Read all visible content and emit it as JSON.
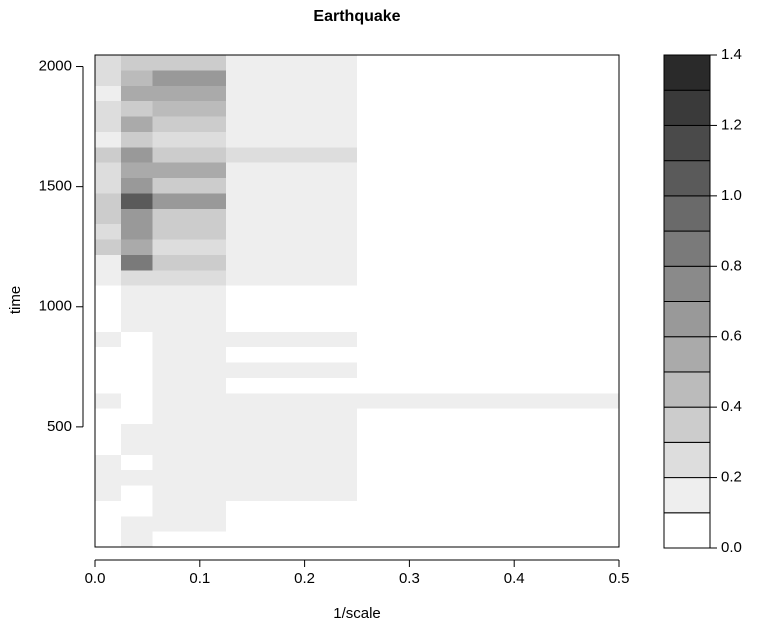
{
  "chart_data": {
    "type": "heatmap",
    "title": "Earthquake",
    "x_label": "1/scale",
    "y_label": "time",
    "xlim": [
      0,
      0.5
    ],
    "xticks": [
      {
        "value": 0,
        "label": "0.0"
      },
      0.1,
      0.2,
      0.3,
      0.4,
      0.5
    ],
    "ylim": [
      0,
      2048
    ],
    "yticks": [
      500,
      1000,
      1500,
      2000
    ],
    "x_edges": [
      0,
      0.025,
      0.055,
      0.125,
      0.25,
      0.5
    ],
    "y_edges": [
      0,
      64,
      128,
      192,
      256,
      320,
      384,
      448,
      512,
      576,
      640,
      704,
      768,
      832,
      896,
      960,
      1024,
      1088,
      1152,
      1216,
      1280,
      1344,
      1408,
      1472,
      1536,
      1600,
      1664,
      1728,
      1792,
      1856,
      1920,
      1984,
      2048
    ],
    "z": [
      [
        0,
        0.1,
        0,
        0,
        0
      ],
      [
        0,
        0.1,
        0.1,
        0,
        0
      ],
      [
        0.05,
        0.05,
        0.1,
        0.05,
        0
      ],
      [
        0.1,
        0.05,
        0.1,
        0.1,
        0.05
      ],
      [
        0.15,
        0.1,
        0.1,
        0.1,
        0.05
      ],
      [
        0.1,
        0.05,
        0.1,
        0.1,
        0
      ],
      [
        0.05,
        0.1,
        0.1,
        0.1,
        0
      ],
      [
        0.05,
        0.15,
        0.1,
        0.1,
        0
      ],
      [
        0.05,
        0.05,
        0.1,
        0.1,
        0.05
      ],
      [
        0.1,
        0.05,
        0.1,
        0.1,
        0.1
      ],
      [
        0.05,
        0.05,
        0.1,
        0.05,
        0
      ],
      [
        0,
        0.05,
        0.1,
        0.1,
        0
      ],
      [
        0.05,
        0.05,
        0.1,
        0.05,
        0
      ],
      [
        0.15,
        0.05,
        0.1,
        0.1,
        0.05
      ],
      [
        0.05,
        0.1,
        0.1,
        0.05,
        0
      ],
      [
        0,
        0.1,
        0.1,
        0.05,
        0
      ],
      [
        0.05,
        0.1,
        0.15,
        0.05,
        0
      ],
      [
        0.1,
        0.2,
        0.2,
        0.1,
        0
      ],
      [
        0.15,
        0.8,
        0.3,
        0.15,
        0.05
      ],
      [
        0.3,
        0.5,
        0.2,
        0.1,
        0
      ],
      [
        0.2,
        0.6,
        0.3,
        0.1,
        0
      ],
      [
        0.3,
        0.6,
        0.3,
        0.15,
        0
      ],
      [
        0.35,
        1.0,
        0.6,
        0.15,
        0
      ],
      [
        0.2,
        0.6,
        0.3,
        0.1,
        0
      ],
      [
        0.2,
        0.5,
        0.5,
        0.15,
        0
      ],
      [
        0.3,
        0.6,
        0.3,
        0.2,
        0.05
      ],
      [
        0.1,
        0.3,
        0.2,
        0.1,
        0
      ],
      [
        0.25,
        0.5,
        0.3,
        0.15,
        0.05
      ],
      [
        0.2,
        0.3,
        0.4,
        0.15,
        0
      ],
      [
        0.15,
        0.5,
        0.5,
        0.15,
        0
      ],
      [
        0.2,
        0.4,
        0.6,
        0.15,
        0
      ],
      [
        0.2,
        0.3,
        0.3,
        0.1,
        0
      ]
    ],
    "levels": [
      0,
      0.1,
      0.2,
      0.3,
      0.4,
      0.5,
      0.6,
      0.7,
      0.8,
      0.9,
      1.0,
      1.1,
      1.2,
      1.3,
      1.4
    ],
    "colors": [
      "#ffffff",
      "#eeeeee",
      "#dddddd",
      "#cccccc",
      "#bbbbbb",
      "#aaaaaa",
      "#999999",
      "#8a8a8a",
      "#7a7a7a",
      "#6a6a6a",
      "#5a5a5a",
      "#4a4a4a",
      "#3a3a3a",
      "#2a2a2a"
    ],
    "colorbar_ticks": [
      {
        "value": 0,
        "label": "0.0"
      },
      0.2,
      0.4,
      0.6,
      0.8,
      {
        "value": 1.0,
        "label": "1.0"
      },
      1.2,
      1.4
    ]
  }
}
